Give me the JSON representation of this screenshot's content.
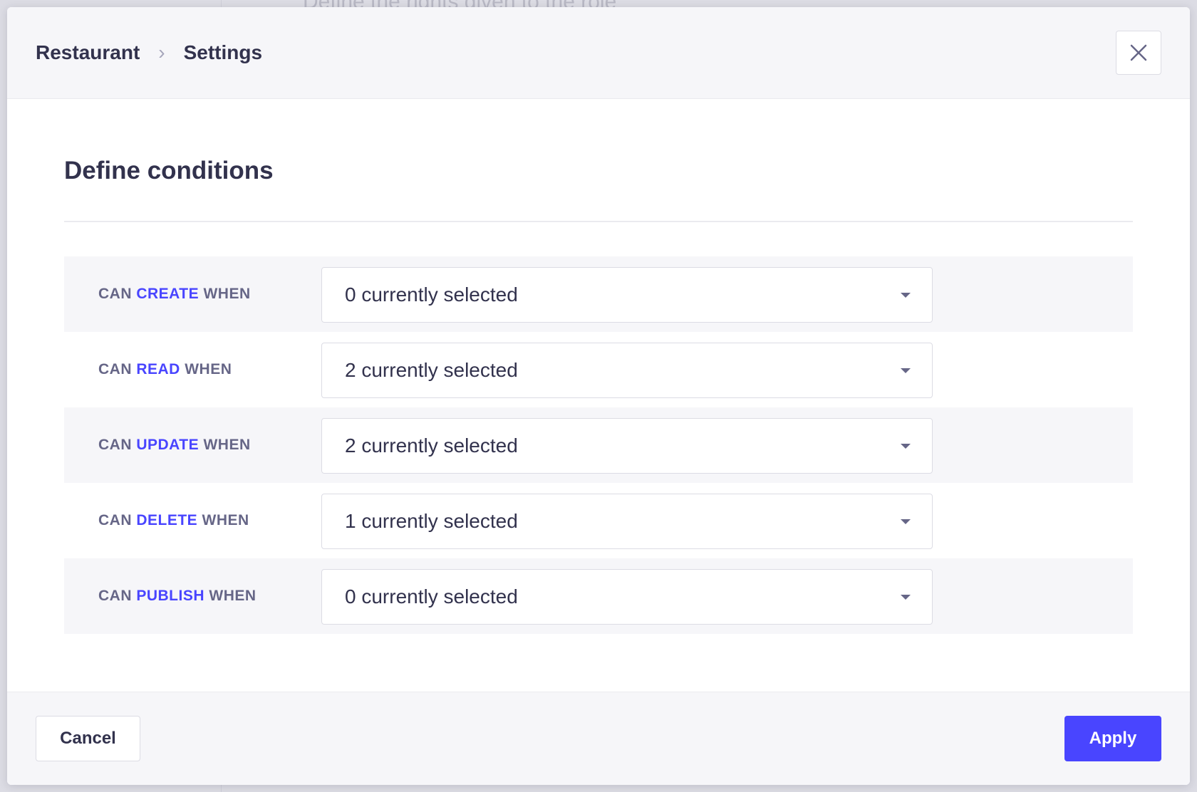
{
  "background": {
    "text": "Define the rights given to the role"
  },
  "header": {
    "breadcrumb": [
      "Restaurant",
      "Settings"
    ],
    "close_icon": "close-icon"
  },
  "title": "Define conditions",
  "rows": [
    {
      "prefix": "Can",
      "action": "create",
      "suffix": "when",
      "value": "0 currently selected"
    },
    {
      "prefix": "Can",
      "action": "read",
      "suffix": "when",
      "value": "2 currently selected"
    },
    {
      "prefix": "Can",
      "action": "update",
      "suffix": "when",
      "value": "2 currently selected"
    },
    {
      "prefix": "Can",
      "action": "delete",
      "suffix": "when",
      "value": "1 currently selected"
    },
    {
      "prefix": "Can",
      "action": "publish",
      "suffix": "when",
      "value": "0 currently selected"
    }
  ],
  "footer": {
    "cancel": "Cancel",
    "apply": "Apply"
  },
  "colors": {
    "accent": "#4945ff",
    "text": "#32324d",
    "muted": "#666687"
  }
}
